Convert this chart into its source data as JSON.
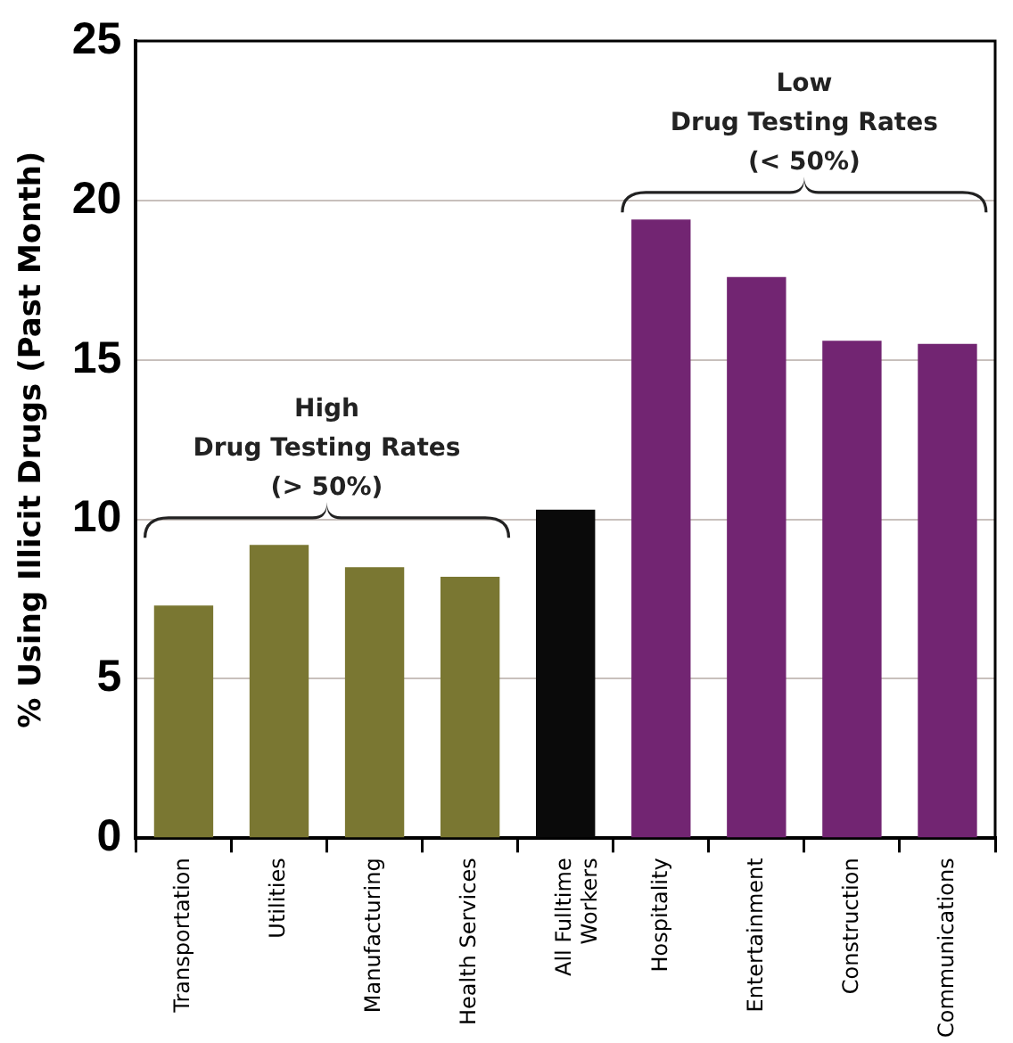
{
  "chart_data": {
    "type": "bar",
    "ylabel": "% Using Illicit Drugs (Past Month)",
    "categories": [
      "Transportation",
      "Utilities",
      "Manufacturing",
      "Health Services",
      "All Fulltime Workers",
      "Hospitality",
      "Entertainment",
      "Construction",
      "Communications"
    ],
    "values": [
      7.3,
      9.2,
      8.5,
      8.2,
      10.3,
      19.4,
      17.6,
      15.6,
      15.5
    ],
    "colors": [
      "#7a7732",
      "#7a7732",
      "#7a7732",
      "#7a7732",
      "#0a0a0a",
      "#722572",
      "#722572",
      "#722572",
      "#722572"
    ],
    "ylim": [
      0,
      25
    ],
    "yticks": [
      0,
      5,
      10,
      15,
      20,
      25
    ],
    "grid": "y",
    "annotations": [
      "High\nDrug Testing Rates\n(> 50%)",
      "Low\nDrug Testing Rates\n(< 50%)"
    ]
  }
}
